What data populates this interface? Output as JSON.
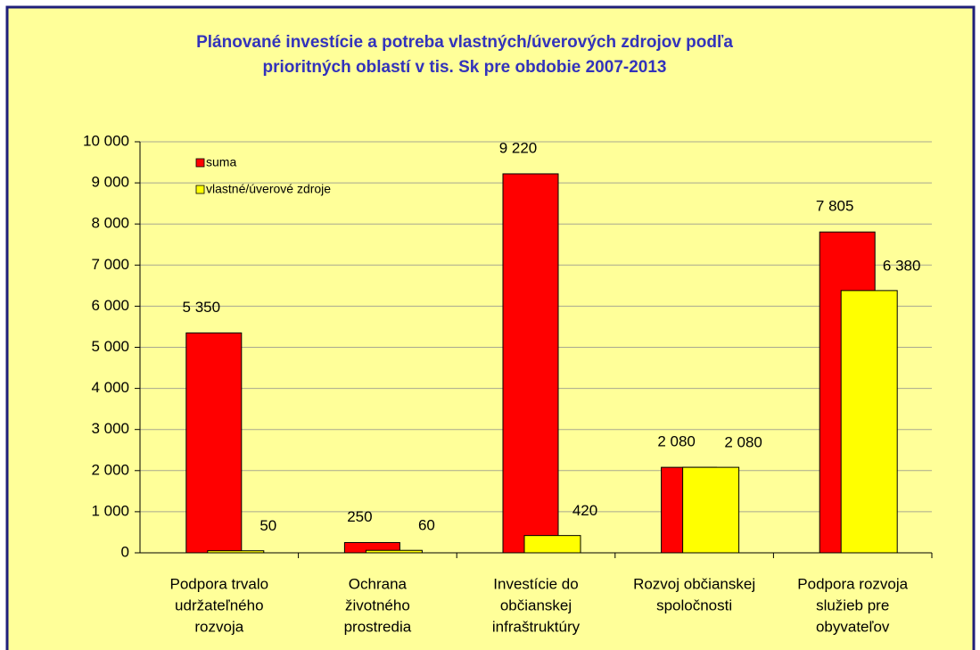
{
  "chart_data": {
    "type": "bar",
    "title": [
      "Plánované investície a potreba vlastných/úverových zdrojov podľa",
      "prioritných oblastí v tis. Sk pre obdobie 2007-2013"
    ],
    "categories": [
      [
        "Podpora trvalo",
        "udržateľného",
        "rozvoja"
      ],
      [
        "Ochrana",
        "životného",
        "prostredia"
      ],
      [
        "Investície do",
        "občianskej",
        "infraštruktúry"
      ],
      [
        "Rozvoj občianskej",
        "spoločnosti"
      ],
      [
        "Podpora rozvoja",
        "služieb pre",
        "obyvateľov"
      ]
    ],
    "series": [
      {
        "name": "suma",
        "color": "#ff0000",
        "values": [
          5350,
          250,
          9220,
          2080,
          7805
        ],
        "value_labels": [
          "5 350",
          "250",
          "9 220",
          "2 080",
          "7 805"
        ]
      },
      {
        "name": "vlastné/úverové zdroje",
        "color": "#ffff00",
        "values": [
          50,
          60,
          420,
          2080,
          6380
        ],
        "value_labels": [
          "50",
          "60",
          "420",
          "2 080",
          "6 380"
        ]
      }
    ],
    "ylim": [
      0,
      10000
    ],
    "yticks": [
      0,
      {
        "value": 1000,
        "label": "1 000"
      },
      {
        "value": 2000,
        "label": "2 000"
      },
      {
        "value": 3000,
        "label": "3 000"
      },
      {
        "value": 4000,
        "label": "4 000"
      },
      {
        "value": 5000,
        "label": "5 000"
      },
      {
        "value": 6000,
        "label": "6 000"
      },
      {
        "value": 7000,
        "label": "7 000"
      },
      {
        "value": 8000,
        "label": "8 000"
      },
      {
        "value": 9000,
        "label": "9 000"
      },
      {
        "value": 10000,
        "label": "10 000"
      }
    ],
    "grid": true,
    "legend": "top-left"
  }
}
